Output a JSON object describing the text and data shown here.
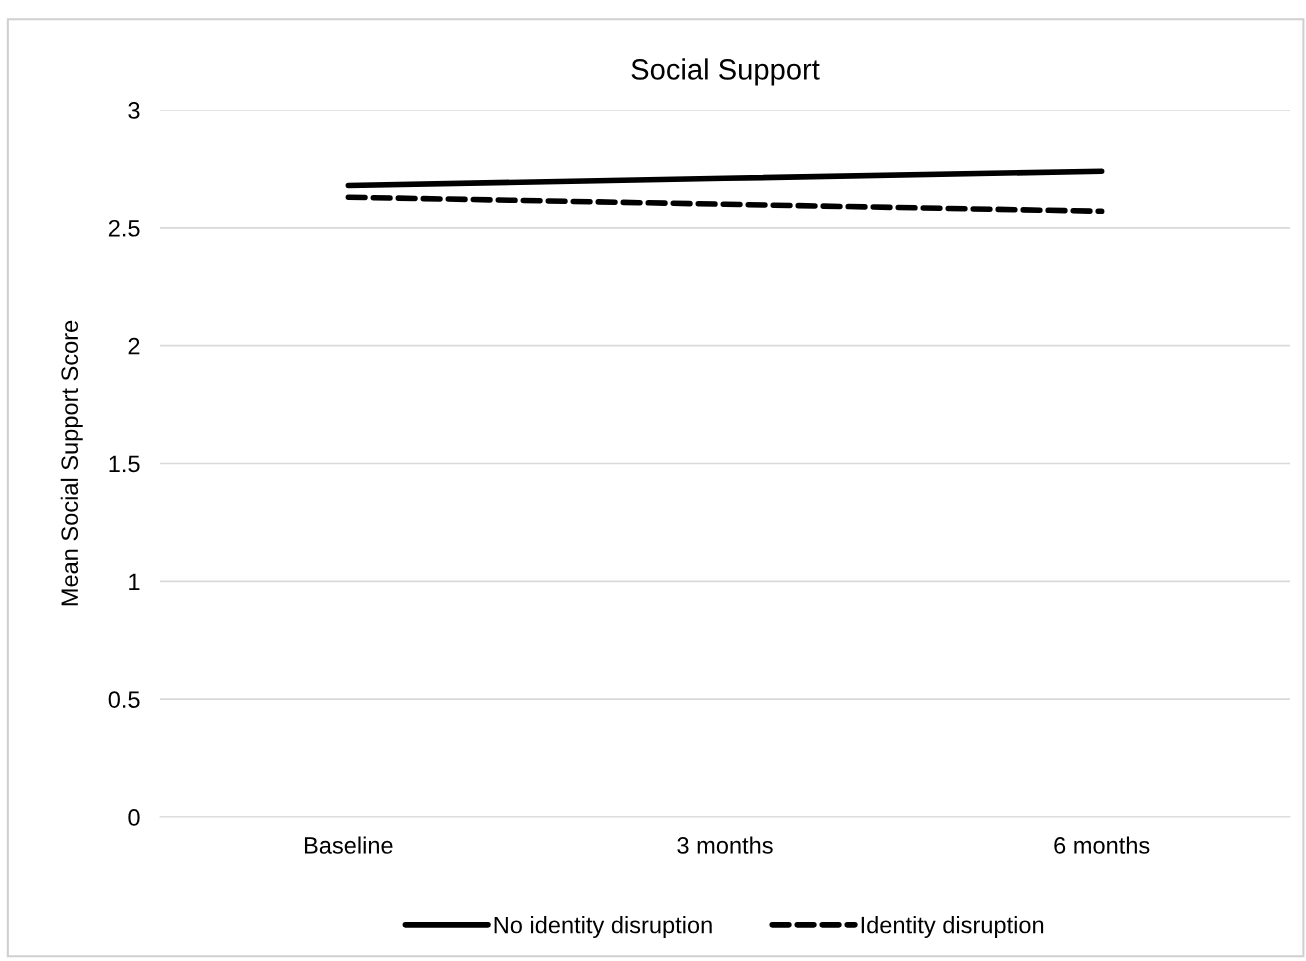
{
  "chart_data": {
    "type": "line",
    "title": "Social Support",
    "ylabel": "Mean Social Support Score",
    "categories": [
      "Baseline",
      "3 months",
      "6 months"
    ],
    "series": [
      {
        "name": "No identity disruption",
        "color": "#000000",
        "line_style": "solid",
        "values": [
          2.68,
          2.71,
          2.74
        ]
      },
      {
        "name": "Identity disruption",
        "color": "#000000",
        "line_style": "dashed",
        "values": [
          2.63,
          2.6,
          2.57
        ]
      }
    ],
    "ylim": [
      0,
      3
    ],
    "yticks": [
      0,
      0.5,
      1,
      1.5,
      2,
      2.5,
      3
    ],
    "grid": "y",
    "legend": "bottom",
    "marker": "none"
  }
}
